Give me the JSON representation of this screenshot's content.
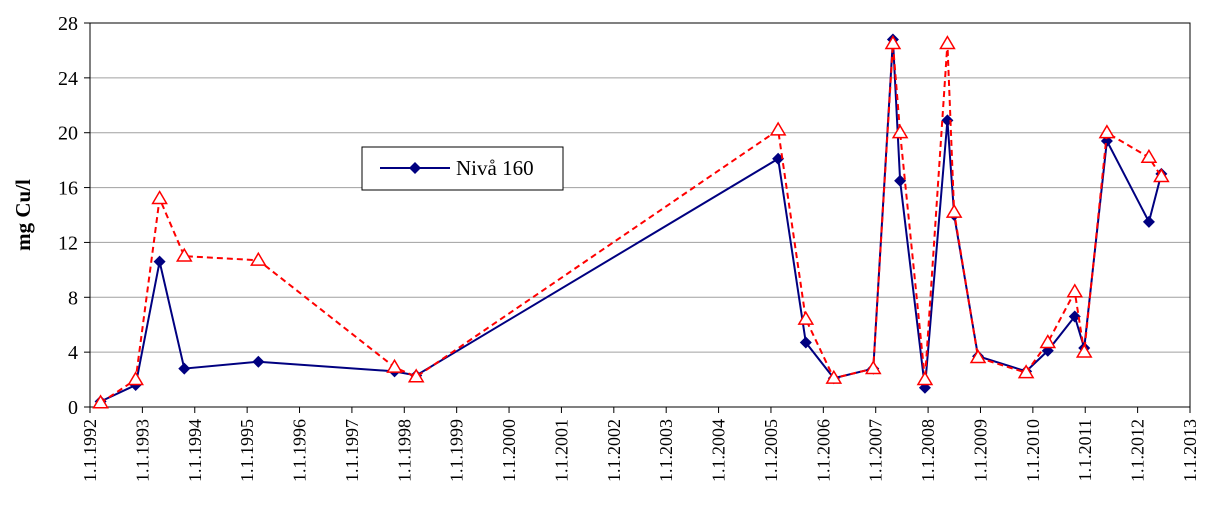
{
  "chart_data": {
    "type": "line",
    "title": "",
    "xlabel": "",
    "ylabel": "mg Cu/l",
    "ylim": [
      0,
      28
    ],
    "yticks": [
      "0",
      "4",
      "8",
      "12",
      "16",
      "20",
      "24",
      "28"
    ],
    "xlim": [
      "1992-01-01",
      "2013-01-01"
    ],
    "xtick_labels": [
      "1.1.1992",
      "1.1.1993",
      "1.1.1994",
      "1.1.1995",
      "1.1.1996",
      "1.1.1997",
      "1.1.1998",
      "1.1.1999",
      "1.1.2000",
      "1.1.2001",
      "1.1.2002",
      "1.1.2003",
      "1.1.2004",
      "1.1.2005",
      "1.1.2006",
      "1.1.2007",
      "1.1.2008",
      "1.1.2009",
      "1.1.2010",
      "1.1.2011",
      "1.1.2012",
      "1.1.2013"
    ],
    "grid": "horizontal",
    "legend_position": "center-left",
    "series": [
      {
        "name": "Nivå 160",
        "color": "#000080",
        "line_style": "solid",
        "marker": "diamond",
        "x": [
          "1992-03-15",
          "1992-11-15",
          "1993-05-01",
          "1993-10-20",
          "1995-03-20",
          "1997-10-25",
          "1998-03-25",
          "2005-02-20",
          "2005-09-01",
          "2006-03-15",
          "2006-12-15",
          "2007-05-01",
          "2007-06-20",
          "2007-12-10",
          "2008-05-15",
          "2008-07-01",
          "2008-12-15",
          "2009-11-15",
          "2010-04-15",
          "2010-10-20",
          "2010-12-25",
          "2011-06-01",
          "2012-03-20",
          "2012-06-15"
        ],
        "values": [
          0.4,
          1.6,
          10.6,
          2.8,
          3.3,
          2.6,
          2.3,
          18.1,
          4.7,
          2.1,
          2.8,
          26.8,
          16.5,
          1.4,
          20.9,
          14.0,
          3.7,
          2.6,
          4.1,
          6.6,
          4.3,
          19.4,
          13.5,
          17.0
        ]
      },
      {
        "color": "#ff0000",
        "line_style": "dashed",
        "marker": "triangle-open",
        "x": [
          "1992-03-15",
          "1992-11-15",
          "1993-05-01",
          "1993-10-20",
          "1995-03-20",
          "1997-10-25",
          "1998-03-25",
          "2005-02-20",
          "2005-09-01",
          "2006-03-15",
          "2006-12-15",
          "2007-05-01",
          "2007-06-20",
          "2007-12-10",
          "2008-05-15",
          "2008-07-01",
          "2008-12-15",
          "2009-11-15",
          "2010-04-15",
          "2010-10-20",
          "2010-12-25",
          "2011-06-01",
          "2012-03-20",
          "2012-06-15"
        ],
        "values": [
          0.3,
          2.0,
          15.2,
          11.0,
          10.7,
          2.9,
          2.2,
          20.2,
          6.4,
          2.1,
          2.8,
          26.5,
          20.0,
          2.0,
          26.5,
          14.2,
          3.6,
          2.5,
          4.7,
          8.4,
          4.0,
          20.0,
          18.2,
          16.8
        ]
      }
    ]
  }
}
